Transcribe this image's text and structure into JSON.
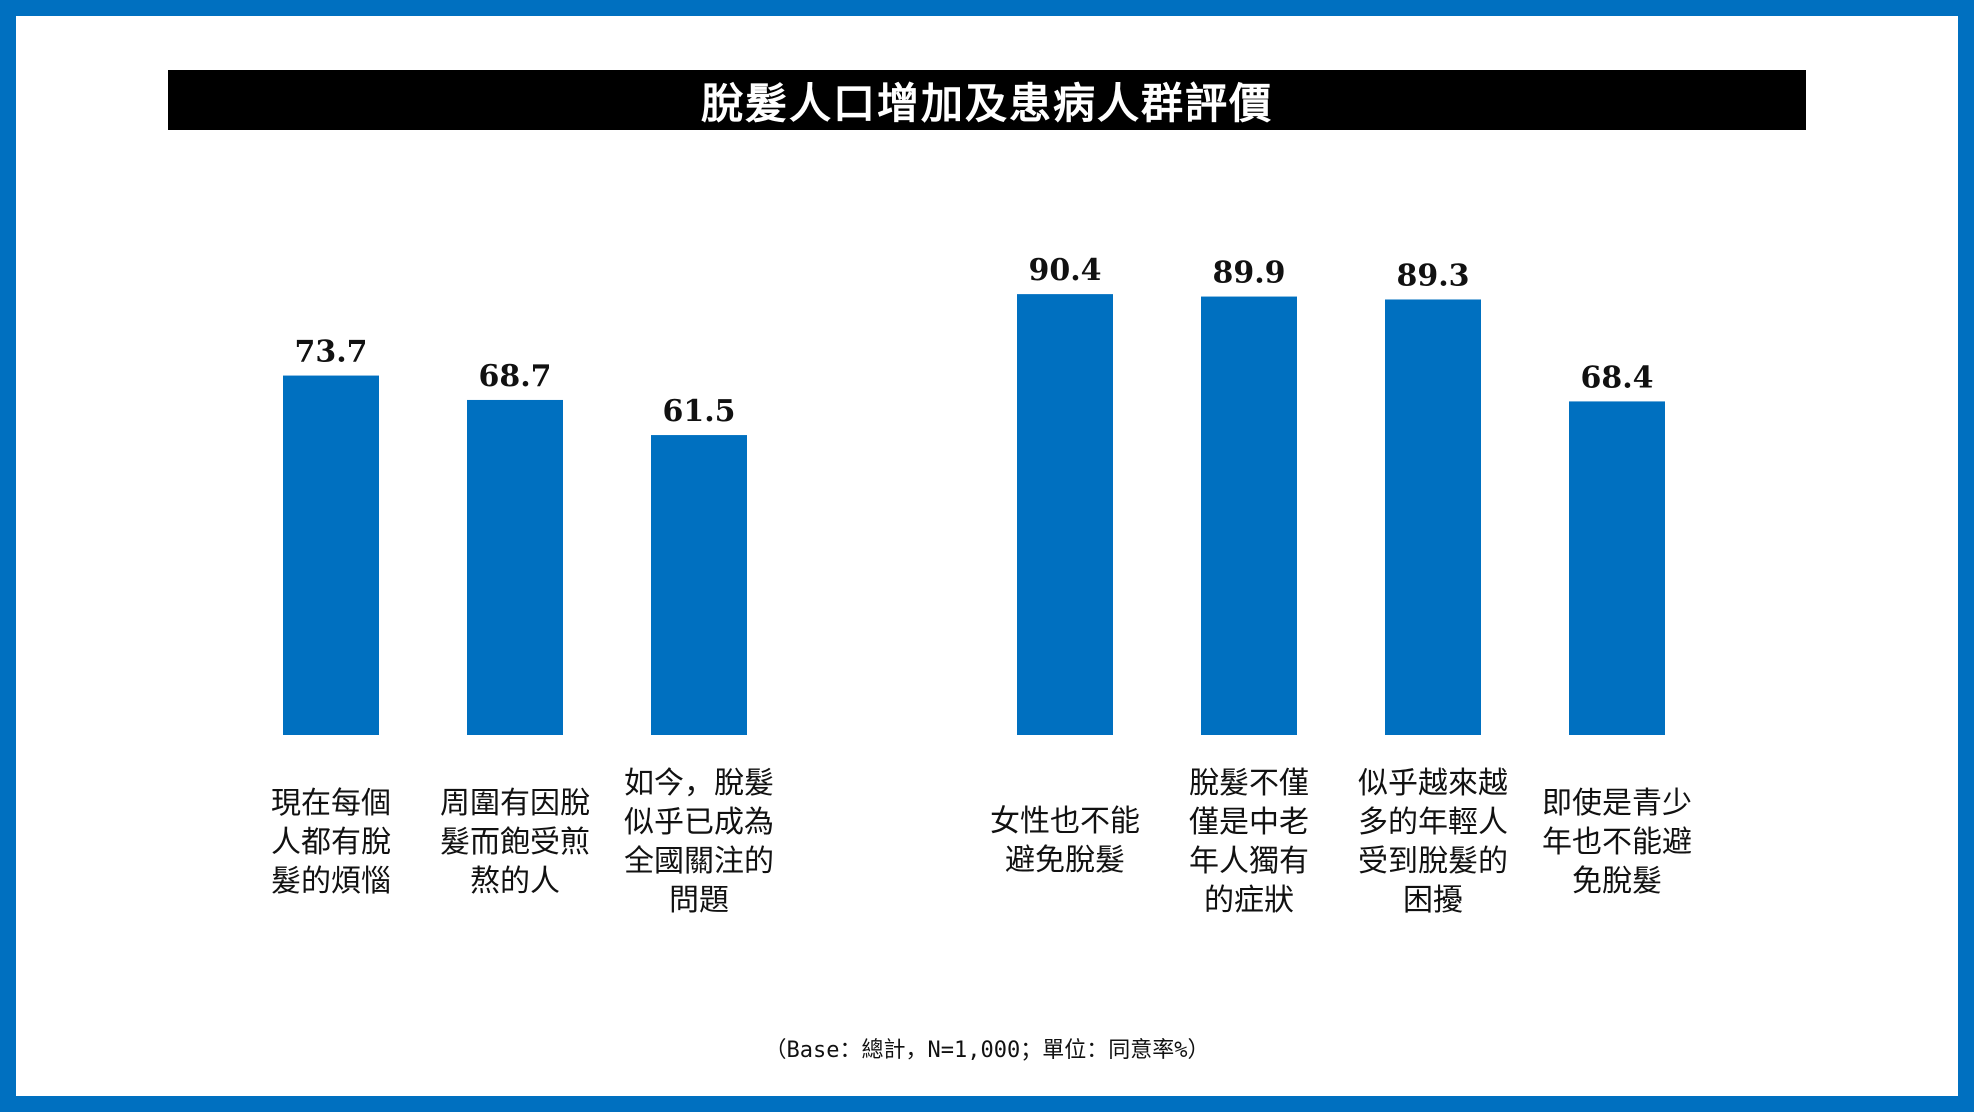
{
  "title": "脫髮人口增加及患病人群評價",
  "footnote": "（Base：總計，N=1,000；單位：同意率%）",
  "colors": {
    "bar": "#0070C0",
    "frame": "#0070C0",
    "title_bg": "#000000"
  },
  "chart_data": {
    "type": "bar",
    "groups": [
      {
        "categories": [
          "現在每個人都有脫髮的煩惱",
          "周圍有因脫髮而飽受煎熬的人",
          "如今，脫髮似乎已成為全國關注的問題"
        ],
        "category_lines": [
          [
            "現在每個",
            "人都有脫",
            "髮的煩惱"
          ],
          [
            "周圍有因脫",
            "髮而飽受煎",
            "熬的人"
          ],
          [
            "如今，脫髮",
            "似乎已成為",
            "全國關注的",
            "問題"
          ]
        ],
        "values": [
          73.7,
          68.7,
          61.5
        ],
        "value_labels": [
          "73.7",
          "68.7",
          "61.5"
        ]
      },
      {
        "categories": [
          "女性也不能避免脫髮",
          "脫髮不僅僅是中老年人獨有的症狀",
          "似乎越來越多的年輕人受到脫髮的困擾",
          "即使是青少年也不能避免脫髮"
        ],
        "category_lines": [
          [
            "女性也不能",
            "避免脫髮"
          ],
          [
            "脫髮不僅",
            "僅是中老",
            "年人獨有",
            "的症狀"
          ],
          [
            "似乎越來越",
            "多的年輕人",
            "受到脫髮的",
            "困擾"
          ],
          [
            "即使是青少",
            "年也不能避",
            "免脫髮"
          ]
        ],
        "values": [
          90.4,
          89.9,
          89.3,
          68.4
        ],
        "value_labels": [
          "90.4",
          "89.9",
          "89.3",
          "68.4"
        ]
      }
    ],
    "unit": "同意率%",
    "ylim": [
      0,
      100
    ],
    "grid": false,
    "legend": "none"
  }
}
